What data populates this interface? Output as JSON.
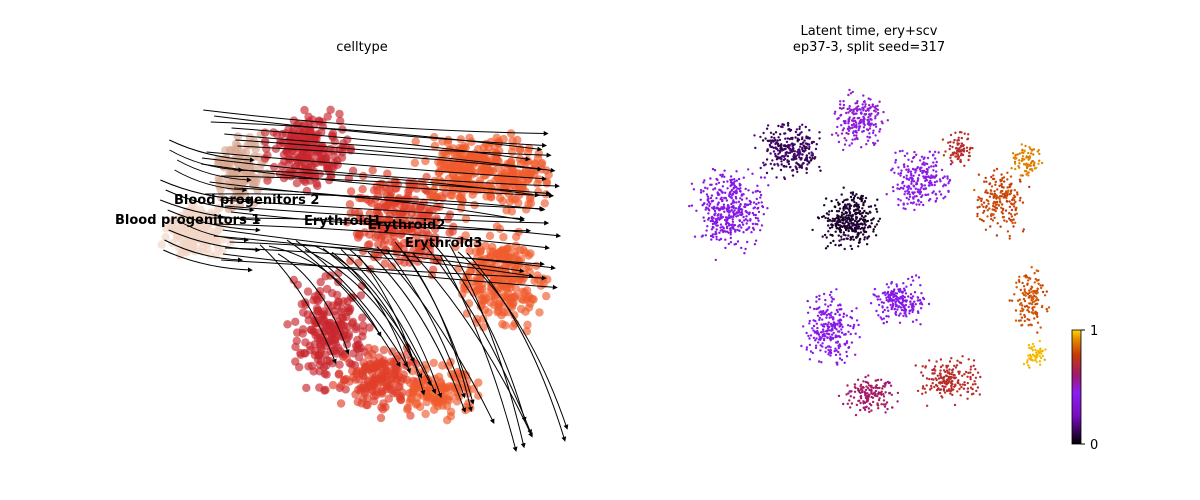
{
  "chart_data": [
    {
      "type": "scatter",
      "title": "celltype",
      "subtitle": "",
      "xlabel": "",
      "ylabel": "",
      "grid": false,
      "overlay": "velocity streamlines (black arrows)",
      "clusters": [
        {
          "name": "Blood progenitors 1",
          "color": "#f1d6c6"
        },
        {
          "name": "Blood progenitors 2",
          "color": "#d9a891"
        },
        {
          "name": "Erythroid1",
          "color": "#c8262e"
        },
        {
          "name": "Erythroid2",
          "color": "#e03f2a"
        },
        {
          "name": "Erythroid3",
          "color": "#ef5a2c"
        }
      ]
    },
    {
      "type": "scatter",
      "title": "Latent time, ery+scv",
      "subtitle": "ep37-3, split seed=317",
      "xlabel": "",
      "ylabel": "",
      "grid": false,
      "colormap": "gnuplot",
      "colorbar": {
        "min": 0,
        "max": 1,
        "ticks": [
          "0",
          "1"
        ],
        "placement": "right"
      }
    }
  ]
}
